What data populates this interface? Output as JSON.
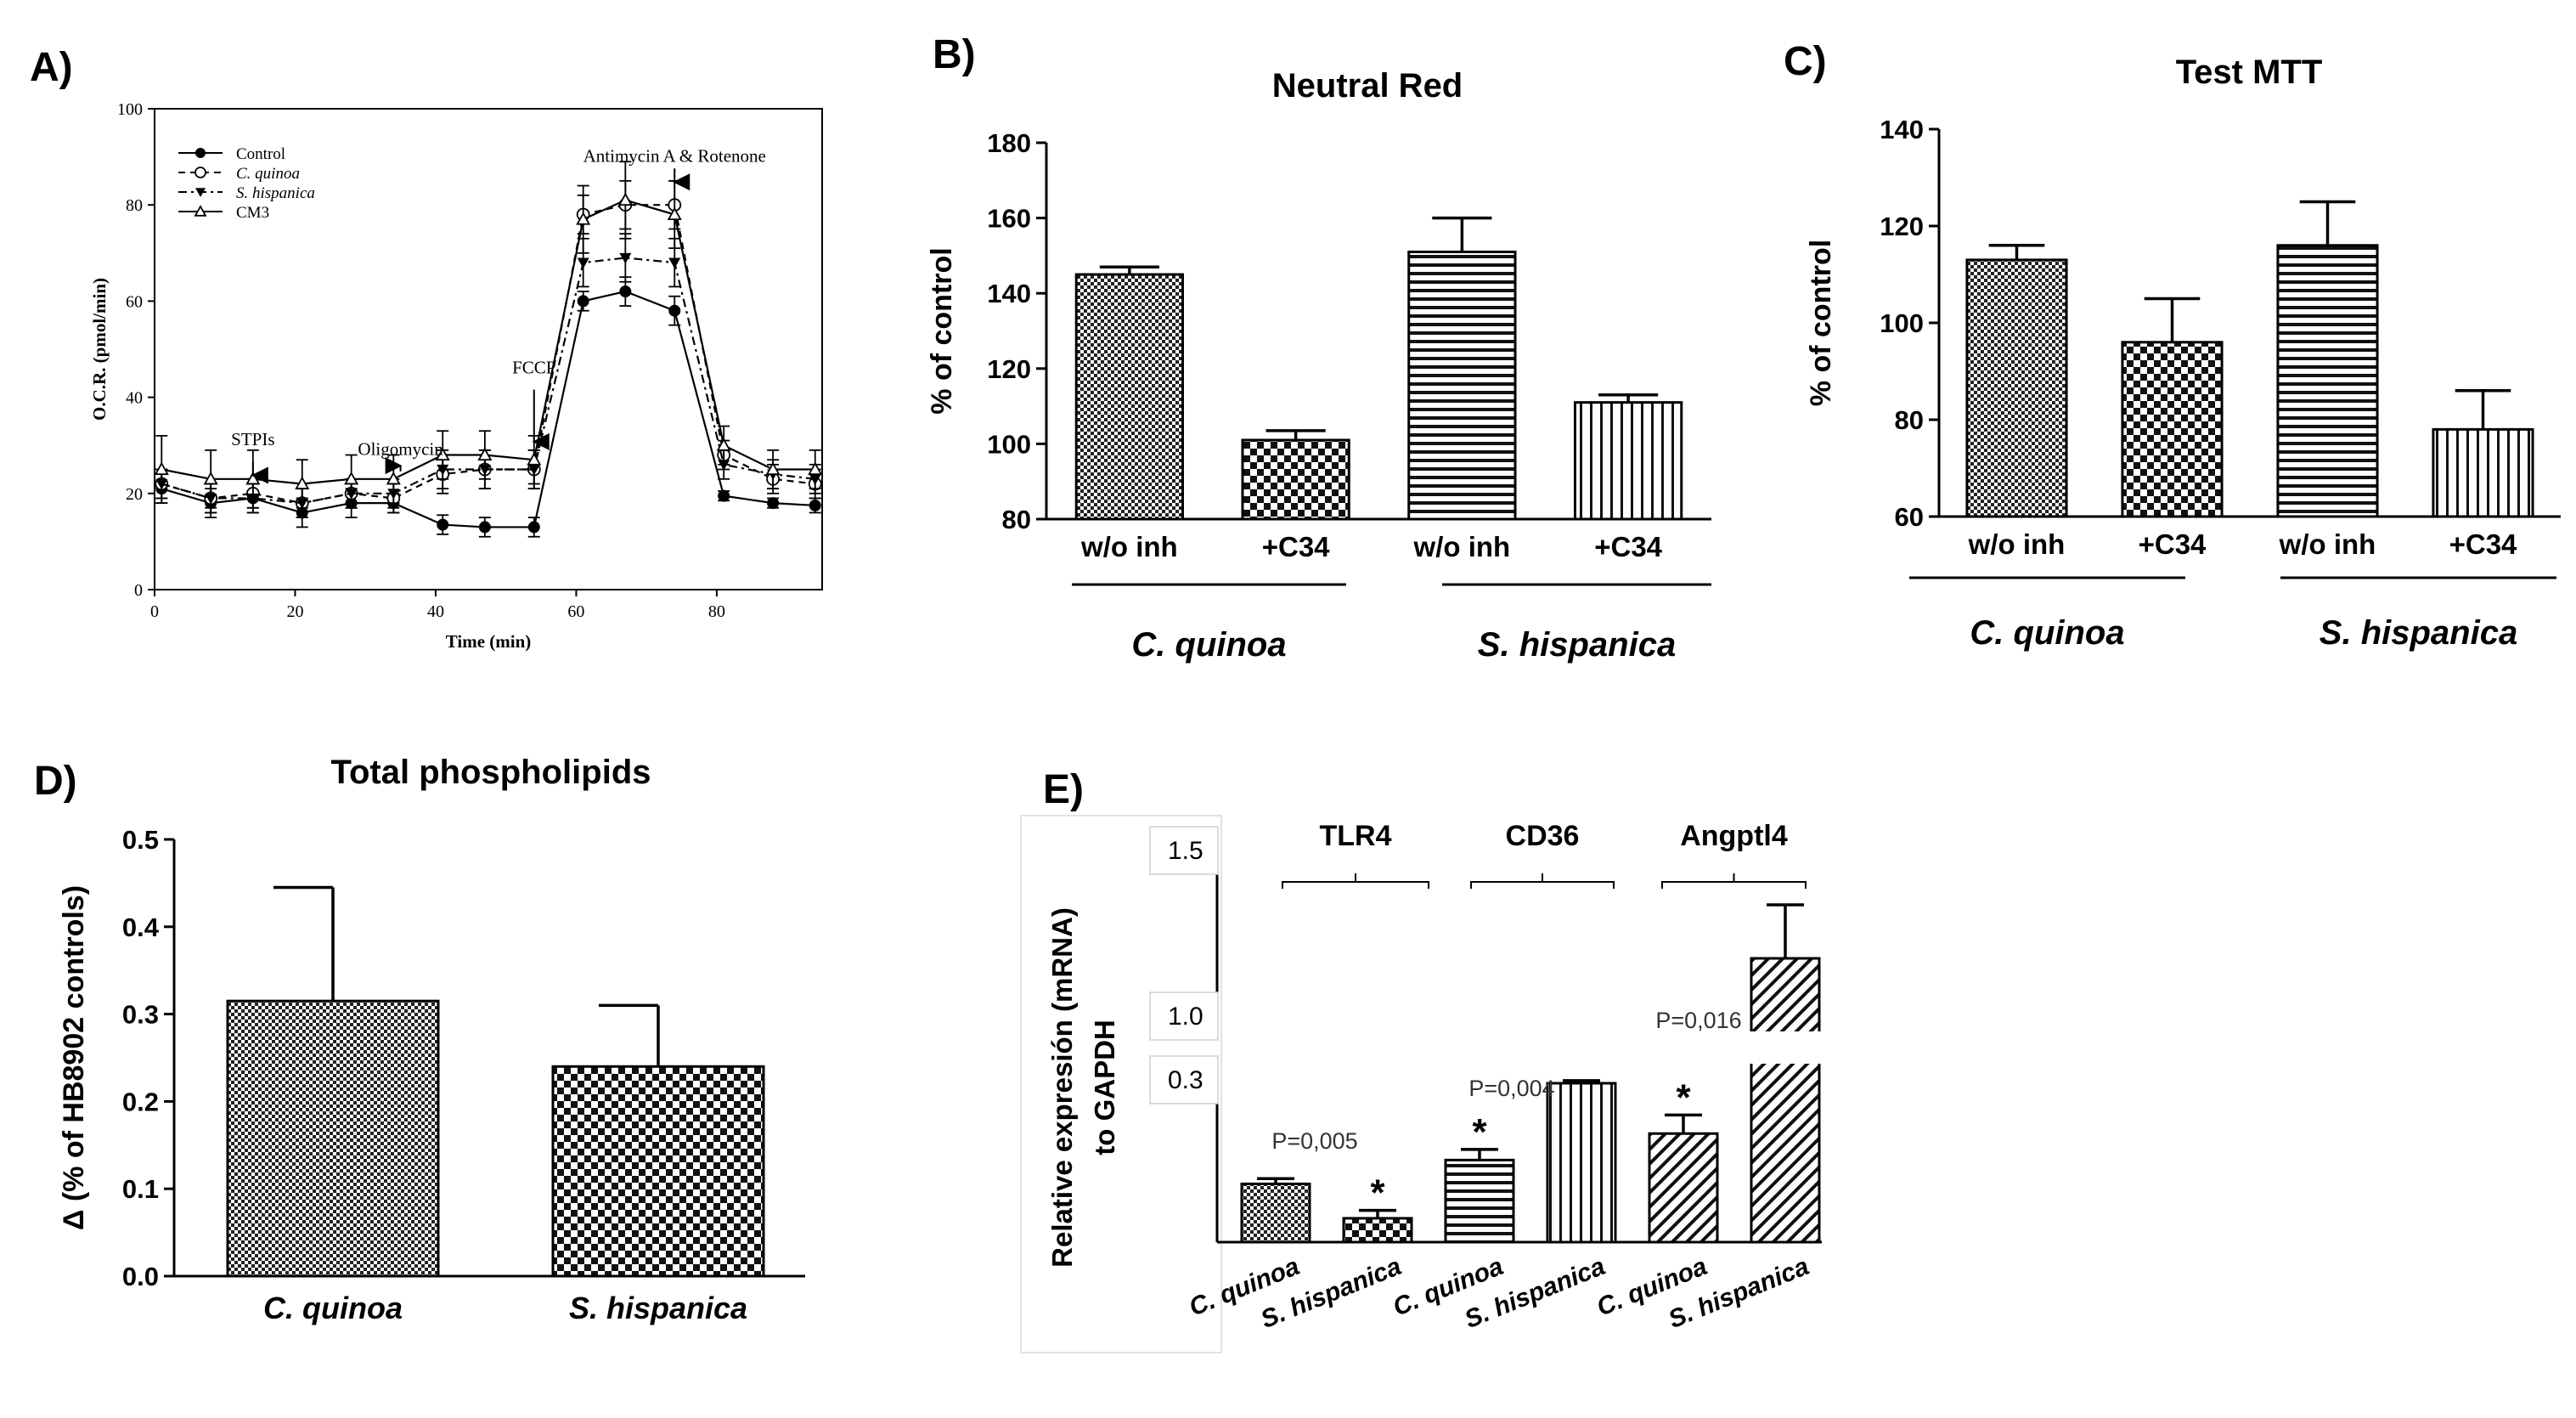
{
  "panels": {
    "a": "A)",
    "b": "B)",
    "c": "C)",
    "d": "D)",
    "e": "E)"
  },
  "chart_data": [
    {
      "id": "A",
      "type": "line",
      "title": "",
      "xlabel": "Time (min)",
      "ylabel": "O.C.R. (pmol/min)",
      "xlim": [
        0,
        95
      ],
      "ylim": [
        0,
        100
      ],
      "xticks": [
        0,
        20,
        40,
        60,
        80
      ],
      "yticks": [
        0,
        20,
        40,
        60,
        80,
        100
      ],
      "x": [
        1,
        8,
        14,
        21,
        28,
        34,
        41,
        47,
        54,
        61,
        67,
        74,
        81,
        88,
        94
      ],
      "series": [
        {
          "name": "Control",
          "marker": "filled-circle",
          "dash": "solid",
          "values": [
            21,
            18,
            19,
            16,
            18,
            18,
            13.5,
            13,
            13,
            60,
            62,
            58,
            19.5,
            18,
            17.5
          ],
          "errors": [
            3,
            3,
            3,
            3,
            3,
            2,
            2,
            2,
            2,
            2,
            3,
            3,
            1,
            1,
            1.5
          ]
        },
        {
          "name": "C. quinoa",
          "marker": "open-circle",
          "dash": "dash",
          "values": [
            22,
            19,
            20,
            18,
            20,
            19,
            24,
            25,
            25,
            78,
            80,
            80,
            28,
            23,
            22
          ],
          "errors": [
            3,
            3,
            3,
            3,
            3,
            3,
            4,
            4,
            4,
            4,
            5,
            5,
            3,
            3,
            3
          ]
        },
        {
          "name": "S. hispanica",
          "marker": "filled-triangle-down",
          "dash": "dashdot",
          "values": [
            22,
            19,
            19,
            18,
            20,
            20,
            25,
            25,
            25,
            68,
            69,
            68,
            26,
            24,
            23
          ],
          "errors": [
            3,
            3,
            3,
            3,
            3,
            3,
            4,
            4,
            4,
            5,
            5,
            5,
            3,
            3,
            3
          ]
        },
        {
          "name": "CM3",
          "marker": "open-triangle-up",
          "dash": "solid",
          "values": [
            25,
            23,
            23,
            22,
            23,
            23,
            28,
            28,
            27,
            77,
            81,
            78,
            30,
            25,
            25
          ],
          "errors": [
            7,
            6,
            6,
            5,
            5,
            5,
            5,
            5,
            5,
            7,
            8,
            7,
            4,
            4,
            4
          ]
        }
      ],
      "annotations": [
        {
          "text": "STPIs",
          "x": 14,
          "y": 30
        },
        {
          "text": "Oligomycin",
          "x": 35,
          "y": 28
        },
        {
          "text": "FCCP",
          "x": 54,
          "y": 45
        },
        {
          "text": "Antimycin A & Rotenone",
          "x": 74,
          "y": 89
        }
      ]
    },
    {
      "id": "B",
      "type": "bar",
      "title": "Neutral Red",
      "ylabel": "% of control",
      "ylim": [
        80,
        180
      ],
      "yticks": [
        80,
        100,
        120,
        140,
        160,
        180
      ],
      "categories": [
        "w/o inh",
        "+C34",
        "w/o inh",
        "+C34"
      ],
      "values": [
        145,
        101,
        151,
        111
      ],
      "errors": [
        2,
        2.5,
        9,
        2
      ],
      "patterns": [
        "fine-check",
        "checker",
        "h-lines",
        "v-lines"
      ],
      "groups": [
        "C. quinoa",
        "S. hispanica"
      ]
    },
    {
      "id": "C",
      "type": "bar",
      "title": "Test MTT",
      "ylabel": "% of control",
      "ylim": [
        60,
        140
      ],
      "yticks": [
        60,
        80,
        100,
        120,
        140
      ],
      "categories": [
        "w/o inh",
        "+C34",
        "w/o inh",
        "+C34"
      ],
      "values": [
        113,
        96,
        116,
        78
      ],
      "errors": [
        3,
        9,
        9,
        8
      ],
      "patterns": [
        "fine-check",
        "checker",
        "h-lines",
        "v-lines"
      ],
      "groups": [
        "C. quinoa",
        "S. hispanica"
      ]
    },
    {
      "id": "D",
      "type": "bar",
      "title": "Total phospholipids",
      "ylabel": "Δ (% of HB8902 controls)",
      "ylim": [
        0,
        0.5
      ],
      "yticks": [
        "0.0",
        "0.1",
        "0.2",
        "0.3",
        "0.4",
        "0.5"
      ],
      "categories": [
        "C. quinoa",
        "S. hispanica"
      ],
      "values": [
        0.315,
        0.24
      ],
      "errors": [
        0.13,
        0.07
      ],
      "patterns": [
        "fine-check",
        "checker"
      ]
    },
    {
      "id": "E",
      "type": "bar",
      "title": "",
      "ylabel_line1": "Relative expresión (mRNA)",
      "ylabel_line2": "to GAPDH",
      "yticks": [
        "1.5",
        "1.0",
        "0.3"
      ],
      "broken_axis": true,
      "gene_groups": [
        "TLR4",
        "CD36",
        "Angptl4"
      ],
      "categories": [
        "C. quinoa",
        "S. hispanica",
        "C. quinoa",
        "S. hispanica",
        "C. quinoa",
        "S. hispanica"
      ],
      "values": [
        0.11,
        0.045,
        0.155,
        0.3,
        0.205,
        1.2
      ],
      "errors": [
        0.01,
        0.015,
        0.02,
        0.005,
        0.035,
        0.15
      ],
      "significance": [
        "",
        "*",
        "*",
        "",
        "*",
        ""
      ],
      "p_values": [
        {
          "text": "P=0,005",
          "group": "TLR4"
        },
        {
          "text": "P=0,004",
          "group": "CD36"
        },
        {
          "text": "P=0,016",
          "group": "Angptl4"
        }
      ],
      "patterns": [
        "fine-check",
        "checker",
        "h-lines",
        "v-lines",
        "diag",
        "diag"
      ]
    }
  ]
}
